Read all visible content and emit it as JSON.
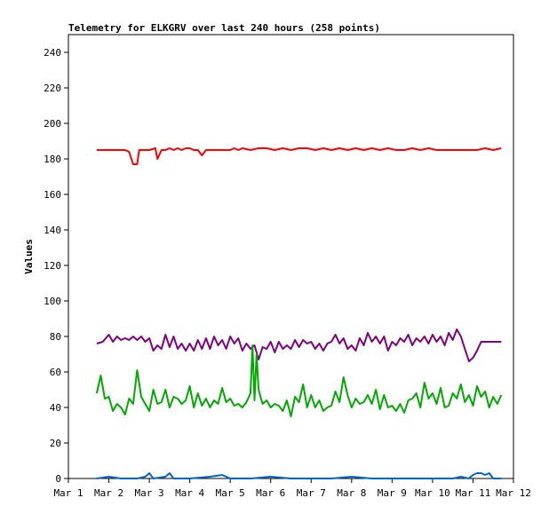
{
  "chart_data": {
    "type": "line",
    "title": "Telemetry for ELKGRV over last 240 hours (258 points)",
    "xlabel": "",
    "ylabel": "Values",
    "ylim": [
      0,
      250
    ],
    "y_ticks": [
      0,
      20,
      40,
      60,
      80,
      100,
      120,
      140,
      160,
      180,
      200,
      220,
      240
    ],
    "x_ticks": [
      "Mar 1",
      "Mar 2",
      "Mar 3",
      "Mar 4",
      "Mar 5",
      "Mar 6",
      "Mar 7",
      "Mar 8",
      "Mar 9",
      "Mar 10",
      "Mar 11",
      "Mar 12"
    ],
    "xlim": [
      0,
      11
    ],
    "grid": false,
    "legend": "none",
    "series": [
      {
        "color": "#ff0000",
        "x": [
          0.7,
          1.3,
          1.4,
          1.5,
          1.6,
          1.7,
          1.75,
          2.0,
          2.15,
          2.2,
          2.3,
          2.4,
          2.5,
          2.6,
          2.7,
          2.8,
          2.9,
          3.0,
          3.1,
          3.2,
          3.3,
          3.4,
          3.5,
          3.6,
          3.7,
          3.8,
          3.9,
          4.0,
          4.1,
          4.2,
          4.3,
          4.5,
          4.7,
          4.9,
          5.1,
          5.3,
          5.5,
          5.7,
          5.9,
          6.1,
          6.3,
          6.5,
          6.7,
          6.9,
          7.1,
          7.3,
          7.5,
          7.7,
          7.9,
          8.1,
          8.3,
          8.5,
          8.7,
          8.9,
          9.1,
          9.3,
          9.5,
          9.7,
          9.9,
          10.1,
          10.3,
          10.5,
          10.7
        ],
        "y": [
          185,
          185,
          185,
          184,
          177,
          177,
          185,
          185,
          186,
          180,
          185,
          185,
          186,
          185,
          186,
          185,
          186,
          186,
          185,
          185,
          182,
          185,
          185,
          185,
          185,
          185,
          185,
          185,
          186,
          185,
          186,
          185,
          186,
          186,
          185,
          186,
          185,
          186,
          186,
          185,
          186,
          185,
          186,
          185,
          186,
          185,
          186,
          185,
          186,
          185,
          185,
          186,
          185,
          186,
          185,
          185,
          185,
          185,
          185,
          185,
          186,
          185,
          186
        ]
      },
      {
        "color": "#800080",
        "x": [
          0.7,
          0.85,
          1.0,
          1.1,
          1.2,
          1.3,
          1.4,
          1.5,
          1.6,
          1.7,
          1.8,
          1.9,
          2.0,
          2.1,
          2.2,
          2.3,
          2.4,
          2.5,
          2.6,
          2.7,
          2.8,
          2.9,
          3.0,
          3.1,
          3.2,
          3.3,
          3.4,
          3.5,
          3.6,
          3.7,
          3.8,
          3.9,
          4.0,
          4.1,
          4.2,
          4.3,
          4.4,
          4.5,
          4.6,
          4.7,
          4.8,
          4.9,
          5.0,
          5.1,
          5.2,
          5.3,
          5.4,
          5.5,
          5.6,
          5.7,
          5.8,
          5.9,
          6.0,
          6.1,
          6.2,
          6.3,
          6.4,
          6.5,
          6.6,
          6.7,
          6.8,
          6.9,
          7.0,
          7.1,
          7.2,
          7.3,
          7.4,
          7.5,
          7.6,
          7.7,
          7.8,
          7.9,
          8.0,
          8.1,
          8.2,
          8.3,
          8.4,
          8.5,
          8.6,
          8.7,
          8.8,
          8.9,
          9.0,
          9.1,
          9.2,
          9.3,
          9.4,
          9.5,
          9.6,
          9.7,
          9.8,
          9.9,
          10.0,
          10.1,
          10.2,
          10.3,
          10.4,
          10.5,
          10.6,
          10.7
        ],
        "y": [
          76,
          77,
          81,
          77,
          80,
          78,
          79,
          78,
          80,
          78,
          80,
          77,
          79,
          72,
          75,
          73,
          81,
          74,
          80,
          73,
          76,
          72,
          76,
          72,
          78,
          73,
          79,
          73,
          80,
          75,
          78,
          73,
          80,
          76,
          79,
          72,
          76,
          73,
          75,
          67,
          74,
          73,
          77,
          71,
          77,
          73,
          75,
          73,
          78,
          74,
          78,
          76,
          77,
          73,
          76,
          72,
          76,
          77,
          81,
          76,
          79,
          73,
          75,
          72,
          79,
          75,
          82,
          77,
          80,
          76,
          80,
          72,
          77,
          75,
          79,
          77,
          81,
          75,
          79,
          77,
          80,
          76,
          81,
          77,
          80,
          75,
          82,
          78,
          84,
          80,
          73,
          66,
          68,
          72,
          77,
          77,
          77,
          77,
          77,
          77
        ]
      },
      {
        "color": "#00aa00",
        "x": [
          0.7,
          0.8,
          0.9,
          1.0,
          1.1,
          1.2,
          1.3,
          1.4,
          1.5,
          1.6,
          1.7,
          1.8,
          1.9,
          2.0,
          2.1,
          2.2,
          2.3,
          2.4,
          2.5,
          2.6,
          2.7,
          2.8,
          2.9,
          3.0,
          3.1,
          3.2,
          3.3,
          3.4,
          3.5,
          3.6,
          3.7,
          3.8,
          3.9,
          4.0,
          4.1,
          4.2,
          4.3,
          4.4,
          4.5,
          4.55,
          4.6,
          4.65,
          4.7,
          4.75,
          4.8,
          4.9,
          5.0,
          5.1,
          5.2,
          5.3,
          5.4,
          5.5,
          5.6,
          5.7,
          5.8,
          5.9,
          6.0,
          6.1,
          6.2,
          6.3,
          6.4,
          6.5,
          6.6,
          6.7,
          6.8,
          6.9,
          7.0,
          7.1,
          7.2,
          7.3,
          7.4,
          7.5,
          7.6,
          7.7,
          7.8,
          7.9,
          8.0,
          8.1,
          8.2,
          8.3,
          8.4,
          8.5,
          8.6,
          8.7,
          8.8,
          8.9,
          9.0,
          9.1,
          9.2,
          9.3,
          9.4,
          9.5,
          9.6,
          9.7,
          9.8,
          9.9,
          10.0,
          10.1,
          10.2,
          10.3,
          10.4,
          10.5,
          10.6,
          10.7
        ],
        "y": [
          48,
          58,
          45,
          46,
          38,
          42,
          40,
          36,
          45,
          42,
          61,
          46,
          42,
          38,
          50,
          42,
          43,
          50,
          40,
          46,
          45,
          42,
          44,
          52,
          40,
          48,
          41,
          45,
          40,
          44,
          42,
          51,
          43,
          45,
          41,
          42,
          40,
          43,
          48,
          75,
          44,
          70,
          50,
          46,
          42,
          44,
          40,
          42,
          41,
          38,
          44,
          35,
          46,
          43,
          53,
          40,
          47,
          40,
          44,
          38,
          40,
          41,
          49,
          43,
          57,
          47,
          40,
          45,
          42,
          43,
          47,
          42,
          50,
          39,
          47,
          40,
          41,
          38,
          42,
          37,
          44,
          45,
          48,
          40,
          54,
          45,
          48,
          42,
          51,
          40,
          41,
          48,
          45,
          53,
          43,
          47,
          41,
          52,
          46,
          49,
          40,
          46,
          42,
          47
        ]
      },
      {
        "color": "#0066cc",
        "x": [
          0.7,
          1.0,
          1.3,
          1.7,
          1.9,
          2.0,
          2.1,
          2.4,
          2.5,
          2.6,
          3.0,
          3.5,
          3.8,
          4.0,
          4.5,
          5.0,
          5.5,
          6.0,
          6.5,
          7.0,
          7.5,
          8.0,
          8.5,
          9.0,
          9.5,
          9.7,
          9.9,
          10.0,
          10.1,
          10.2,
          10.3,
          10.4,
          10.5,
          10.7
        ],
        "y": [
          0,
          1,
          0,
          0,
          1,
          3,
          0,
          1,
          3,
          0,
          0,
          1,
          2,
          0,
          0,
          1,
          0,
          0,
          0,
          1,
          0,
          0,
          0,
          0,
          0,
          1,
          0,
          2,
          3,
          3,
          2,
          3,
          0,
          0
        ]
      }
    ]
  }
}
